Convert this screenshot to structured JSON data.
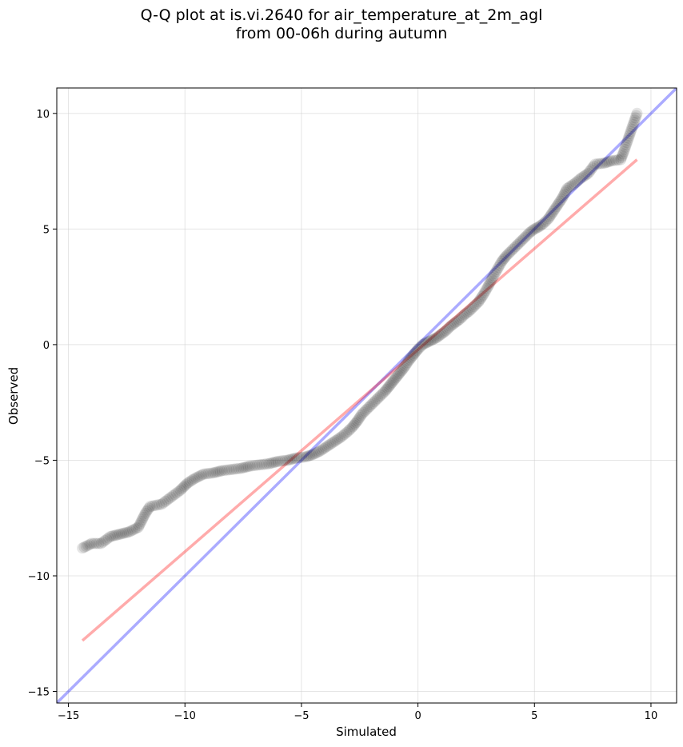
{
  "chart_data": {
    "type": "scatter",
    "title_line1": "Q-Q plot at is.vi.2640 for air_temperature_at_2m_agl",
    "title_line2": "from 00-06h during autumn",
    "xlabel": "Simulated",
    "ylabel": "Observed",
    "xlim": [
      -15.5,
      11.1
    ],
    "ylim": [
      -15.5,
      11.1
    ],
    "xticks": [
      -15,
      -10,
      -5,
      0,
      5,
      10
    ],
    "yticks": [
      -15,
      -10,
      -5,
      0,
      5,
      10
    ],
    "xtick_labels": [
      "−15",
      "−10",
      "−5",
      "0",
      "5",
      "10"
    ],
    "ytick_labels": [
      "−15",
      "−10",
      "−5",
      "0",
      "5",
      "10"
    ],
    "grid": true,
    "point_color": "#000000",
    "identity_line": {
      "color": "#0000ff",
      "x": [
        -15.5,
        11.1
      ],
      "y": [
        -15.5,
        11.1
      ]
    },
    "fit_line": {
      "color": "#ff0000",
      "x": [
        -14.4,
        9.4
      ],
      "y": [
        -12.8,
        8.0
      ]
    },
    "qq_points": [
      [
        -14.4,
        -8.8
      ],
      [
        -14.0,
        -8.6
      ],
      [
        -13.6,
        -8.6
      ],
      [
        -13.2,
        -8.3
      ],
      [
        -12.8,
        -8.2
      ],
      [
        -12.4,
        -8.1
      ],
      [
        -12.0,
        -7.9
      ],
      [
        -11.7,
        -7.3
      ],
      [
        -11.5,
        -7.0
      ],
      [
        -11.0,
        -6.9
      ],
      [
        -10.6,
        -6.6
      ],
      [
        -10.2,
        -6.3
      ],
      [
        -9.9,
        -6.0
      ],
      [
        -9.6,
        -5.8
      ],
      [
        -9.2,
        -5.6
      ],
      [
        -8.8,
        -5.55
      ],
      [
        -8.4,
        -5.45
      ],
      [
        -8.0,
        -5.4
      ],
      [
        -7.6,
        -5.35
      ],
      [
        -7.2,
        -5.25
      ],
      [
        -6.8,
        -5.2
      ],
      [
        -6.4,
        -5.15
      ],
      [
        -6.0,
        -5.05
      ],
      [
        -5.6,
        -5.0
      ],
      [
        -5.2,
        -4.9
      ],
      [
        -4.8,
        -4.85
      ],
      [
        -4.5,
        -4.75
      ],
      [
        -4.2,
        -4.6
      ],
      [
        -3.9,
        -4.4
      ],
      [
        -3.6,
        -4.2
      ],
      [
        -3.3,
        -4.0
      ],
      [
        -3.0,
        -3.75
      ],
      [
        -2.8,
        -3.55
      ],
      [
        -2.6,
        -3.3
      ],
      [
        -2.4,
        -3.0
      ],
      [
        -2.2,
        -2.8
      ],
      [
        -2.0,
        -2.6
      ],
      [
        -1.8,
        -2.4
      ],
      [
        -1.6,
        -2.2
      ],
      [
        -1.4,
        -2.0
      ],
      [
        -1.2,
        -1.75
      ],
      [
        -1.0,
        -1.5
      ],
      [
        -0.8,
        -1.25
      ],
      [
        -0.6,
        -1.0
      ],
      [
        -0.4,
        -0.7
      ],
      [
        -0.2,
        -0.45
      ],
      [
        0.0,
        -0.2
      ],
      [
        0.2,
        0.0
      ],
      [
        0.4,
        0.1
      ],
      [
        0.6,
        0.2
      ],
      [
        0.8,
        0.3
      ],
      [
        1.0,
        0.45
      ],
      [
        1.2,
        0.6
      ],
      [
        1.4,
        0.8
      ],
      [
        1.6,
        0.95
      ],
      [
        1.8,
        1.1
      ],
      [
        2.0,
        1.3
      ],
      [
        2.2,
        1.45
      ],
      [
        2.4,
        1.65
      ],
      [
        2.6,
        1.85
      ],
      [
        2.8,
        2.15
      ],
      [
        3.0,
        2.5
      ],
      [
        3.2,
        2.9
      ],
      [
        3.4,
        3.25
      ],
      [
        3.6,
        3.6
      ],
      [
        3.8,
        3.85
      ],
      [
        4.0,
        4.05
      ],
      [
        4.2,
        4.25
      ],
      [
        4.4,
        4.45
      ],
      [
        4.6,
        4.65
      ],
      [
        4.8,
        4.85
      ],
      [
        5.0,
        5.0
      ],
      [
        5.2,
        5.1
      ],
      [
        5.4,
        5.25
      ],
      [
        5.6,
        5.45
      ],
      [
        5.8,
        5.75
      ],
      [
        6.0,
        6.05
      ],
      [
        6.2,
        6.35
      ],
      [
        6.4,
        6.75
      ],
      [
        6.7,
        6.95
      ],
      [
        7.0,
        7.2
      ],
      [
        7.3,
        7.4
      ],
      [
        7.6,
        7.8
      ],
      [
        8.0,
        7.85
      ],
      [
        8.3,
        7.95
      ],
      [
        8.7,
        8.0
      ],
      [
        8.8,
        8.25
      ],
      [
        9.4,
        10.0
      ]
    ]
  }
}
